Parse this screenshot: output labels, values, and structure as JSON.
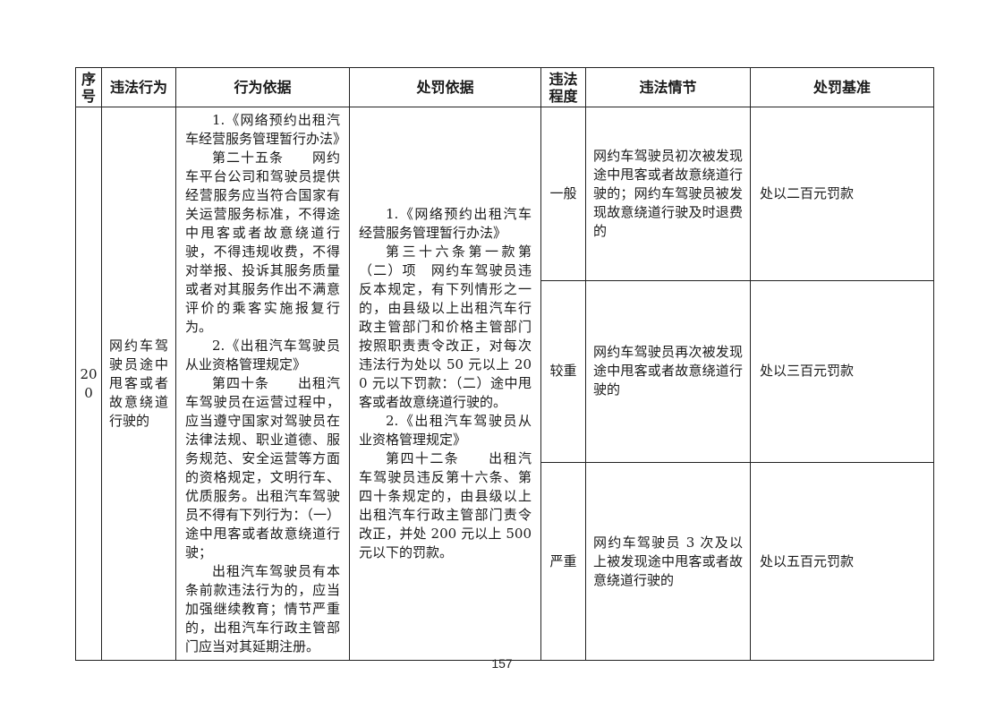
{
  "page": {
    "number": "157"
  },
  "colors": {
    "border": "#222222",
    "text": "#1a1a1a",
    "background": "#ffffff"
  },
  "table": {
    "headers": {
      "serial": "序号",
      "behavior": "违法行为",
      "behavior_basis": "行为依据",
      "penalty_basis": "处罚依据",
      "degree": "违法程度",
      "circumstance": "违法情节",
      "standard": "处罚基准"
    },
    "row": {
      "serial": "200",
      "behavior": "网约车驾驶员途中甩客或者故意绕道行驶的",
      "behavior_basis": [
        "1.《网络预约出租汽车经营服务管理暂行办法》",
        "第二十五条　　网约车平台公司和驾驶员提供经营服务应当符合国家有关运营服务标准，不得途中甩客或者故意绕道行驶，不得违规收费，不得对举报、投诉其服务质量或者对其服务作出不满意评价的乘客实施报复行为。",
        "2.《出租汽车驾驶员从业资格管理规定》",
        "第四十条　　出租汽车驾驶员在运营过程中，应当遵守国家对驾驶员在法律法规、职业道德、服务规范、安全运营等方面的资格规定，文明行车、优质服务。出租汽车驾驶员不得有下列行为：（一）途中甩客或者故意绕道行驶；",
        "出租汽车驾驶员有本条前款违法行为的，应当加强继续教育；情节严重的，出租汽车行政主管部门应当对其延期注册。"
      ],
      "penalty_basis": [
        "1.《网络预约出租汽车经营服务管理暂行办法》",
        "第三十六条第一款第（二）项　网约车驾驶员违反本规定，有下列情形之一的，由县级以上出租汽车行政主管部门和价格主管部门按照职责责令改正，对每次违法行为处以 50 元以上 200 元以下罚款：（二）途中甩客或者故意绕道行驶的。",
        "2.《出租汽车驾驶员从业资格管理规定》",
        "第四十二条　　出租汽车驾驶员违反第十六条、第四十条规定的，由县级以上出租汽车行政主管部门责令改正，并处 200 元以上 500 元以下的罚款。"
      ],
      "severity_rows": [
        {
          "degree": "一般",
          "circumstance": "网约车驾驶员初次被发现途中甩客或者故意绕道行驶的；网约车驾驶员被发现故意绕道行驶及时退费的",
          "standard": "处以二百元罚款"
        },
        {
          "degree": "较重",
          "circumstance": "网约车驾驶员再次被发现途中甩客或者故意绕道行驶的",
          "standard": "处以三百元罚款"
        },
        {
          "degree": "严重",
          "circumstance": "网约车驾驶员 3 次及以上被发现途中甩客或者故意绕道行驶的",
          "standard": "处以五百元罚款"
        }
      ]
    }
  }
}
